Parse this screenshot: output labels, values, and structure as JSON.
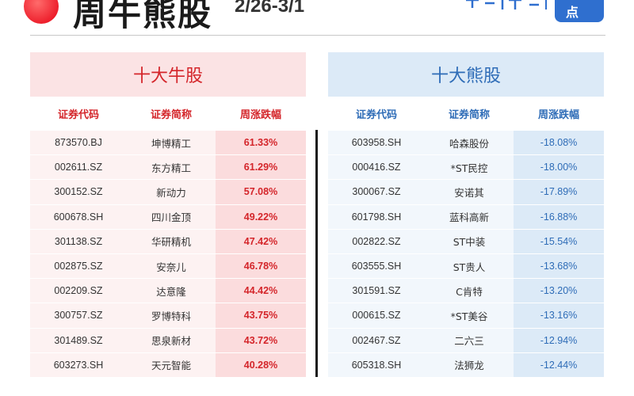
{
  "header": {
    "title": "周牛熊股",
    "date_range": "2/26-3/1",
    "brand_badge": "点"
  },
  "bull": {
    "title": "十大牛股",
    "columns": [
      "证券代码",
      "证券简称",
      "周涨跌幅"
    ],
    "rows": [
      {
        "code": "873570.BJ",
        "name": "坤博精工",
        "change": "61.33%"
      },
      {
        "code": "002611.SZ",
        "name": "东方精工",
        "change": "61.29%"
      },
      {
        "code": "300152.SZ",
        "name": "新动力",
        "change": "57.08%"
      },
      {
        "code": "600678.SH",
        "name": "四川金顶",
        "change": "49.22%"
      },
      {
        "code": "301138.SZ",
        "name": "华研精机",
        "change": "47.42%"
      },
      {
        "code": "002875.SZ",
        "name": "安奈儿",
        "change": "46.78%"
      },
      {
        "code": "002209.SZ",
        "name": "达意隆",
        "change": "44.42%"
      },
      {
        "code": "300757.SZ",
        "name": "罗博特科",
        "change": "43.75%"
      },
      {
        "code": "301489.SZ",
        "name": "思泉新材",
        "change": "43.72%"
      },
      {
        "code": "603273.SH",
        "name": "天元智能",
        "change": "40.28%"
      }
    ]
  },
  "bear": {
    "title": "十大熊股",
    "columns": [
      "证券代码",
      "证券简称",
      "周涨跌幅"
    ],
    "rows": [
      {
        "code": "603958.SH",
        "name": "哈森股份",
        "change": "-18.08%"
      },
      {
        "code": "000416.SZ",
        "name": "*ST民控",
        "change": "-18.00%"
      },
      {
        "code": "300067.SZ",
        "name": "安诺其",
        "change": "-17.89%"
      },
      {
        "code": "601798.SH",
        "name": "蓝科高新",
        "change": "-16.88%"
      },
      {
        "code": "002822.SZ",
        "name": "ST中装",
        "change": "-15.54%"
      },
      {
        "code": "603555.SH",
        "name": "ST贵人",
        "change": "-13.68%"
      },
      {
        "code": "301591.SZ",
        "name": "C肯特",
        "change": "-13.20%"
      },
      {
        "code": "000615.SZ",
        "name": "*ST美谷",
        "change": "-13.16%"
      },
      {
        "code": "002467.SZ",
        "name": "二六三",
        "change": "-12.94%"
      },
      {
        "code": "605318.SH",
        "name": "法狮龙",
        "change": "-12.44%"
      }
    ]
  },
  "colors": {
    "bull_accent": "#d4252a",
    "bear_accent": "#2e6cb7",
    "bull_header_bg": "#fbe3e4",
    "bear_header_bg": "#dceaf7"
  }
}
